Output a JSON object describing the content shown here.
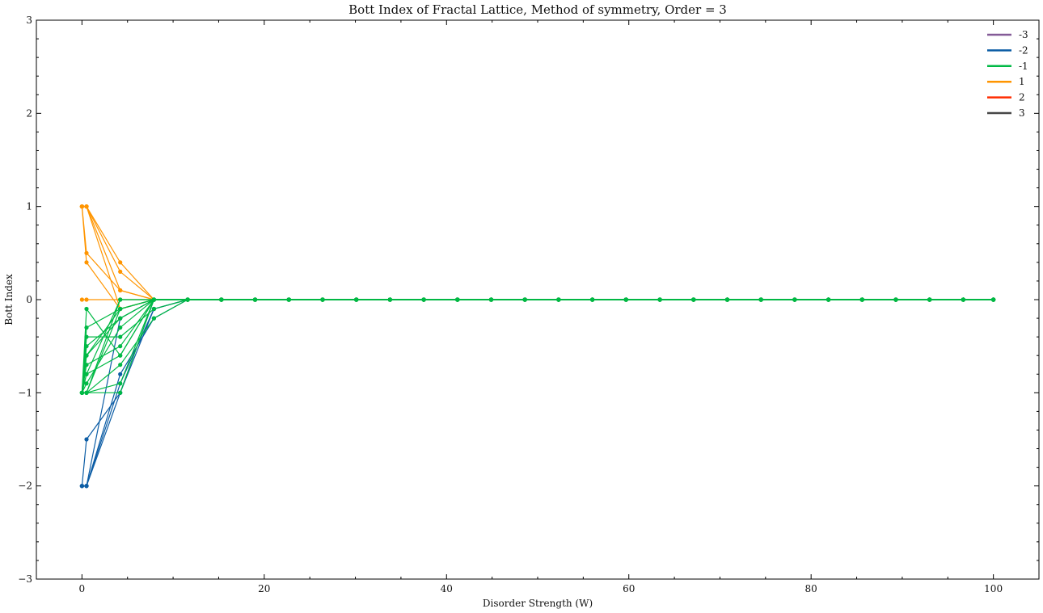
{
  "chart_data": {
    "type": "line",
    "title": "Bott Index of Fractal Lattice, Method of symmetry, Order = 3",
    "xlabel": "Disorder Strength (W)",
    "ylabel": "Bott Index",
    "xlim": [
      -5,
      105
    ],
    "ylim": [
      -3,
      3
    ],
    "xticks": [
      0,
      20,
      40,
      60,
      80,
      100
    ],
    "yticks": [
      -3,
      -2,
      -1,
      0,
      1,
      2,
      3
    ],
    "xtick_labels": [
      "0",
      "20",
      "40",
      "60",
      "80",
      "100"
    ],
    "ytick_labels": [
      "−3",
      "−2",
      "−1",
      "0",
      "1",
      "2",
      "3"
    ],
    "x": [
      0,
      0.5,
      4.2,
      7.9,
      11.6,
      15.3,
      19.0,
      22.7,
      26.4,
      30.1,
      33.8,
      37.5,
      41.2,
      44.9,
      48.6,
      52.3,
      56.0,
      59.7,
      63.4,
      67.1,
      70.8,
      74.5,
      78.2,
      81.9,
      85.6,
      89.3,
      93.0,
      96.7,
      100.0
    ],
    "grid": false,
    "legend_position": "top-right",
    "legend": [
      {
        "label": "-3",
        "color": "#845B97"
      },
      {
        "label": "-2",
        "color": "#0C5DA5"
      },
      {
        "label": "-1",
        "color": "#00B945"
      },
      {
        "label": "1",
        "color": "#FF9500"
      },
      {
        "label": "2",
        "color": "#FF2C00"
      },
      {
        "label": "3",
        "color": "#474747"
      }
    ],
    "series": [
      {
        "name": "-2",
        "color": "#0C5DA5",
        "head": [
          -2,
          -1.5,
          -1.0,
          -0.1
        ]
      },
      {
        "name": "-2",
        "color": "#0C5DA5",
        "head": [
          -2,
          -2.0,
          -0.8,
          -0.2
        ]
      },
      {
        "name": "-2",
        "color": "#0C5DA5",
        "head": [
          -2,
          -2.0,
          -1.0,
          0
        ]
      },
      {
        "name": "-2",
        "color": "#0C5DA5",
        "head": [
          -2,
          -2.0,
          -0.9,
          -0.1
        ]
      },
      {
        "name": "-2",
        "color": "#0C5DA5",
        "head": [
          -2,
          -2.0,
          -0.2,
          0
        ]
      },
      {
        "name": "1",
        "color": "#FF9500",
        "head": [
          1,
          1.0,
          0.4,
          0
        ]
      },
      {
        "name": "1",
        "color": "#FF9500",
        "head": [
          1,
          0.5,
          0.1,
          0
        ]
      },
      {
        "name": "1",
        "color": "#FF9500",
        "head": [
          1,
          0.4,
          -0.1,
          0
        ]
      },
      {
        "name": "1",
        "color": "#FF9500",
        "head": [
          1,
          1.0,
          0.3,
          0
        ]
      },
      {
        "name": "1",
        "color": "#FF9500",
        "head": [
          1,
          1.0,
          0.1,
          0
        ]
      },
      {
        "name": "1",
        "color": "#FF9500",
        "head": [
          1,
          1.0,
          -0.1,
          0
        ]
      },
      {
        "name": "1",
        "color": "#FF9500",
        "head": [
          0,
          0,
          0,
          0
        ]
      },
      {
        "name": "-1",
        "color": "#00B945",
        "head": [
          -1,
          -0.1,
          -0.6,
          0
        ]
      },
      {
        "name": "-1",
        "color": "#00B945",
        "head": [
          -1,
          -0.4,
          -0.4,
          -0.1
        ]
      },
      {
        "name": "-1",
        "color": "#00B945",
        "head": [
          -1,
          -0.6,
          -0.2,
          0
        ]
      },
      {
        "name": "-1",
        "color": "#00B945",
        "head": [
          -1,
          -0.7,
          -0.5,
          0
        ]
      },
      {
        "name": "-1",
        "color": "#00B945",
        "head": [
          -1,
          -0.8,
          0,
          0
        ]
      },
      {
        "name": "-1",
        "color": "#00B945",
        "head": [
          -1,
          -0.9,
          -0.3,
          0
        ]
      },
      {
        "name": "-1",
        "color": "#00B945",
        "head": [
          -1,
          -1.0,
          -0.7,
          -0.2
        ]
      },
      {
        "name": "-1",
        "color": "#00B945",
        "head": [
          -1,
          -1.0,
          -1.0,
          0
        ]
      },
      {
        "name": "-1",
        "color": "#00B945",
        "head": [
          -1,
          -1.0,
          -0.1,
          0
        ]
      },
      {
        "name": "-1",
        "color": "#00B945",
        "head": [
          -1,
          -0.5,
          -0.2,
          0
        ]
      },
      {
        "name": "-1",
        "color": "#00B945",
        "head": [
          -1,
          -1.0,
          -0.9,
          0
        ]
      },
      {
        "name": "-1",
        "color": "#00B945",
        "head": [
          -1,
          -0.6,
          -0.1,
          0
        ]
      },
      {
        "name": "-1",
        "color": "#00B945",
        "head": [
          -1,
          -1.0,
          0,
          0
        ]
      },
      {
        "name": "-1",
        "color": "#00B945",
        "head": [
          -1,
          -0.8,
          -0.6,
          0
        ]
      },
      {
        "name": "-1",
        "color": "#00B945",
        "head": [
          -1,
          -0.3,
          -0.1,
          0
        ]
      }
    ]
  }
}
